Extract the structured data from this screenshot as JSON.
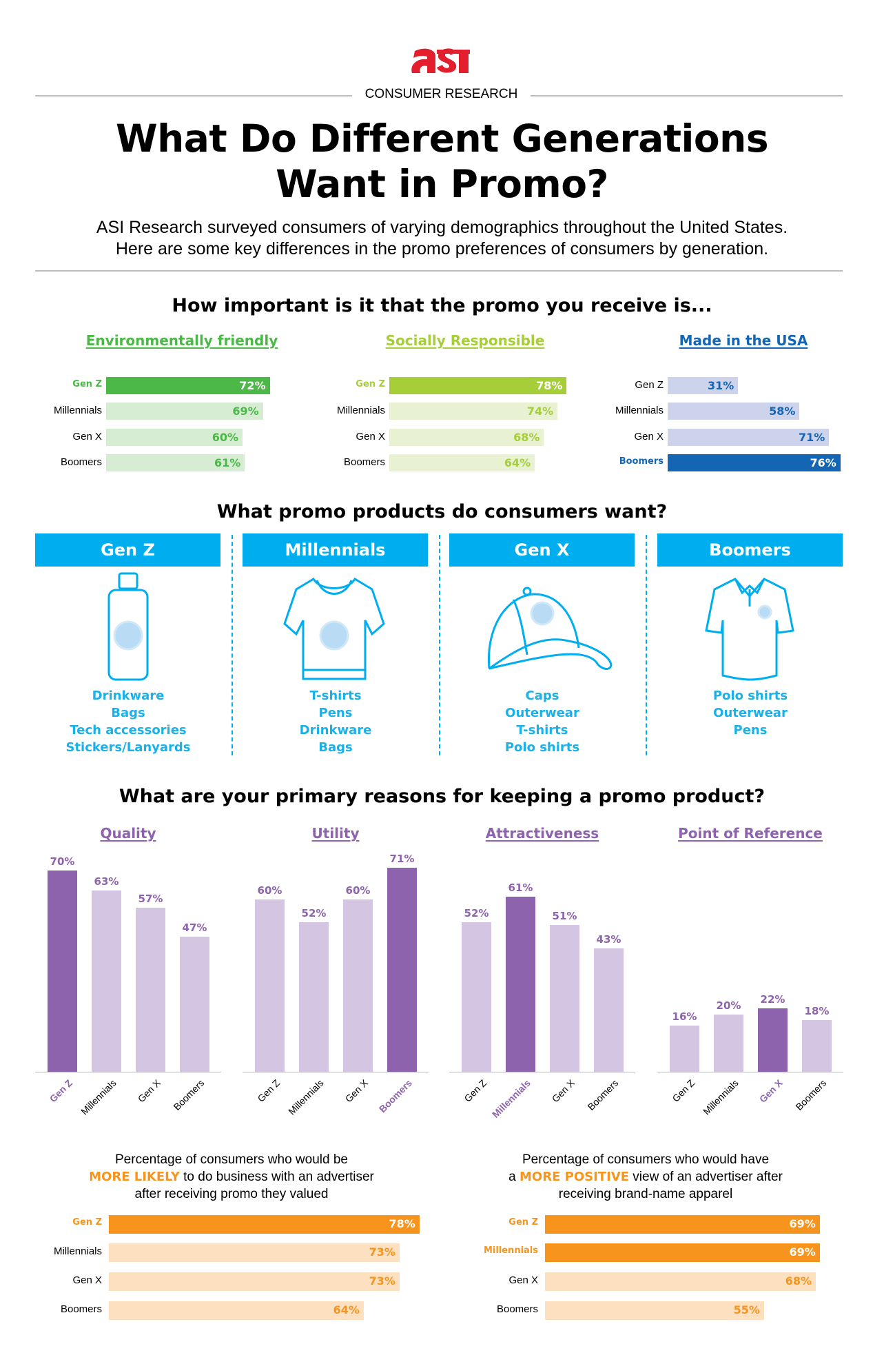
{
  "header": {
    "logo_text": "ASI",
    "kicker": "CONSUMER RESEARCH",
    "title_line1": "What Do Different Generations",
    "title_line2": "Want in Promo?",
    "subtitle_line1": "ASI Research surveyed consumers of varying demographics throughout the United States.",
    "subtitle_line2": "Here are some key differences in the promo preferences of consumers by generation."
  },
  "colors": {
    "green": "#4cb848",
    "green_light": "#d6ecd3",
    "lime": "#a6ce39",
    "lime_light": "#e8f1d1",
    "blue": "#1565b5",
    "blue_light": "#cdd3eb",
    "cyan": "#00aeef",
    "purple": "#8e63ad",
    "purple_light": "#d4c6e3",
    "orange": "#f7941d",
    "orange_light": "#fde0c0",
    "logo_red": "#e31e2d"
  },
  "importance": {
    "heading": "How important is it that the promo you receive is...",
    "charts": [
      {
        "title": "Environmentally friendly",
        "color": "green",
        "categories": [
          "Gen Z",
          "Millennials",
          "Gen X",
          "Boomers"
        ],
        "values": [
          72,
          69,
          60,
          61
        ],
        "highlight": 0
      },
      {
        "title": "Socially Responsible",
        "color": "lime",
        "categories": [
          "Gen Z",
          "Millennials",
          "Gen X",
          "Boomers"
        ],
        "values": [
          78,
          74,
          68,
          64
        ],
        "highlight": 0
      },
      {
        "title": "Made in the USA",
        "color": "blue",
        "categories": [
          "Gen Z",
          "Millennials",
          "Gen X",
          "Boomers"
        ],
        "values": [
          31,
          58,
          71,
          76
        ],
        "highlight": 3
      }
    ]
  },
  "products": {
    "heading": "What promo products do consumers want?",
    "groups": [
      {
        "name": "Gen Z",
        "icon": "water-bottle-icon",
        "items": [
          "Drinkware",
          "Bags",
          "Tech accessories",
          "Stickers/Lanyards"
        ]
      },
      {
        "name": "Millennials",
        "icon": "t-shirt-icon",
        "items": [
          "T-shirts",
          "Pens",
          "Drinkware",
          "Bags"
        ]
      },
      {
        "name": "Gen X",
        "icon": "cap-icon",
        "items": [
          "Caps",
          "Outerwear",
          "T-shirts",
          "Polo shirts"
        ]
      },
      {
        "name": "Boomers",
        "icon": "polo-shirt-icon",
        "items": [
          "Polo shirts",
          "Outerwear",
          "Pens"
        ]
      }
    ]
  },
  "chart_data": [
    {
      "type": "bar",
      "title": "Quality",
      "categories": [
        "Gen Z",
        "Millennials",
        "Gen X",
        "Boomers"
      ],
      "values": [
        70,
        63,
        57,
        47
      ],
      "highlight": 0,
      "ylim": [
        0,
        100
      ],
      "grid": false
    },
    {
      "type": "bar",
      "title": "Utility",
      "categories": [
        "Gen Z",
        "Millennials",
        "Gen X",
        "Boomers"
      ],
      "values": [
        60,
        52,
        60,
        71
      ],
      "highlight": 3,
      "ylim": [
        0,
        100
      ],
      "grid": false
    },
    {
      "type": "bar",
      "title": "Attractiveness",
      "categories": [
        "Gen Z",
        "Millennials",
        "Gen X",
        "Boomers"
      ],
      "values": [
        52,
        61,
        51,
        43
      ],
      "highlight": 1,
      "ylim": [
        0,
        100
      ],
      "grid": false
    },
    {
      "type": "bar",
      "title": "Point of Reference",
      "categories": [
        "Gen Z",
        "Millennials",
        "Gen X",
        "Boomers"
      ],
      "values": [
        16,
        20,
        22,
        18
      ],
      "highlight": 2,
      "ylim": [
        0,
        100
      ],
      "grid": false
    }
  ],
  "reasons": {
    "heading": "What are your primary reasons for keeping a promo product?"
  },
  "likelihood": [
    {
      "line1": "Percentage of consumers who would be",
      "emph": "MORE LIKELY",
      "line2_rest": " to do business with an advertiser",
      "line3": "after receiving promo they valued",
      "categories": [
        "Gen Z",
        "Millennials",
        "Gen X",
        "Boomers"
      ],
      "values": [
        78,
        73,
        73,
        64
      ],
      "highlight": [
        0
      ]
    },
    {
      "line1": "Percentage of consumers who would have",
      "prefix": "a ",
      "emph": "MORE POSITIVE",
      "line2_rest": " view of an advertiser after",
      "line3": "receiving brand-name apparel",
      "categories": [
        "Gen Z",
        "Millennials",
        "Gen X",
        "Boomers"
      ],
      "values": [
        69,
        69,
        68,
        55
      ],
      "highlight": [
        0,
        1
      ]
    }
  ]
}
